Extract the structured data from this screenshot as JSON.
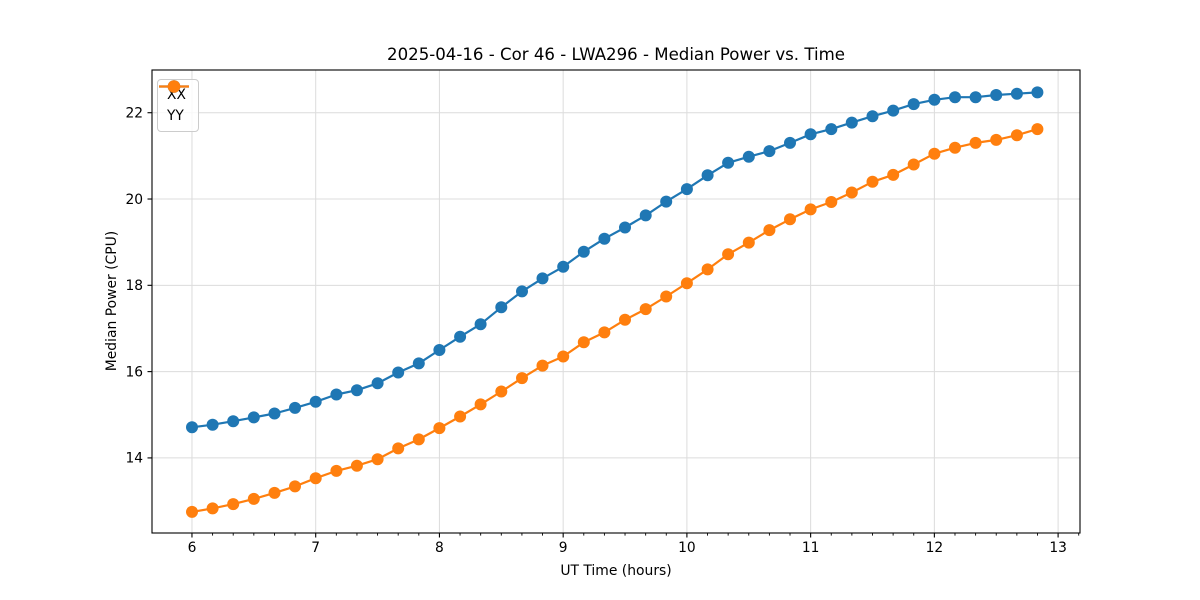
{
  "figure": {
    "background": "#ffffff",
    "grid_color": "#dcdcdc",
    "spine_color": "#000000",
    "text_color": "#000000"
  },
  "chart_data": {
    "type": "line",
    "title": "2025-04-16 - Cor 46 - LWA296 - Median Power vs. Time",
    "xlabel": "UT Time (hours)",
    "ylabel": "Median Power (CPU)",
    "legend_position": "upper left",
    "grid": true,
    "xlim": [
      5.677,
      13.177
    ],
    "ylim": [
      12.26,
      22.99
    ],
    "xticks": [
      6,
      7,
      8,
      9,
      10,
      11,
      12,
      13
    ],
    "yticks": [
      14,
      16,
      18,
      20,
      22
    ],
    "x_minor_tick_step": 0.1667,
    "x": [
      6.0,
      6.167,
      6.333,
      6.5,
      6.667,
      6.833,
      7.0,
      7.167,
      7.333,
      7.5,
      7.667,
      7.833,
      8.0,
      8.167,
      8.333,
      8.5,
      8.667,
      8.833,
      9.0,
      9.167,
      9.333,
      9.5,
      9.667,
      9.833,
      10.0,
      10.167,
      10.333,
      10.5,
      10.667,
      10.833,
      11.0,
      11.167,
      11.333,
      11.5,
      11.667,
      11.833,
      12.0,
      12.167,
      12.333,
      12.5,
      12.667,
      12.833
    ],
    "series": [
      {
        "name": "XX",
        "color": "#1f77b4",
        "values": [
          14.71,
          14.77,
          14.85,
          14.94,
          15.03,
          15.16,
          15.3,
          15.47,
          15.57,
          15.73,
          15.98,
          16.19,
          16.5,
          16.81,
          17.1,
          17.49,
          17.86,
          18.16,
          18.43,
          18.78,
          19.08,
          19.34,
          19.62,
          19.94,
          20.23,
          20.55,
          20.84,
          20.98,
          21.11,
          21.3,
          21.5,
          21.62,
          21.77,
          21.92,
          22.05,
          22.2,
          22.3,
          22.36,
          22.36,
          22.41,
          22.44,
          22.47
        ]
      },
      {
        "name": "YY",
        "color": "#ff7f0e",
        "values": [
          12.75,
          12.83,
          12.93,
          13.05,
          13.19,
          13.34,
          13.53,
          13.7,
          13.82,
          13.97,
          14.22,
          14.43,
          14.69,
          14.96,
          15.24,
          15.54,
          15.85,
          16.14,
          16.35,
          16.68,
          16.91,
          17.2,
          17.45,
          17.74,
          18.05,
          18.37,
          18.72,
          18.99,
          19.28,
          19.53,
          19.76,
          19.93,
          20.15,
          20.4,
          20.56,
          20.8,
          21.05,
          21.19,
          21.3,
          21.37,
          21.48,
          21.62
        ]
      }
    ]
  }
}
